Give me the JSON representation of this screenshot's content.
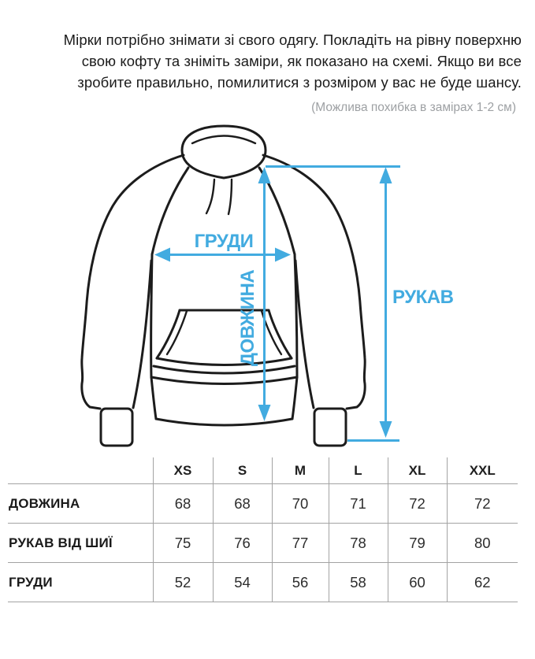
{
  "intro": {
    "lines": [
      "Мірки потрібно знімати зі свого одягу. Покладіть на рівну поверхню",
      "свою кофту та зніміть заміри, як показано на схемі. Якщо ви все",
      "зробите правильно, помилитися з розміром у вас не буде шансу."
    ],
    "note": "(Можлива похибка в замірах 1-2 см)"
  },
  "diagram": {
    "labels": {
      "chest": "ГРУДИ",
      "length": "ДОВЖИНА",
      "sleeve": "РУКАВ"
    },
    "accent_color": "#42ABE0",
    "outline_color": "#1c1c1c"
  },
  "size_table": {
    "columns": [
      "XS",
      "S",
      "M",
      "L",
      "XL",
      "XXL"
    ],
    "rows": [
      {
        "label": "ДОВЖИНА",
        "values": [
          "68",
          "68",
          "70",
          "71",
          "72",
          "72"
        ]
      },
      {
        "label": "РУКАВ ВІД ШИЇ",
        "values": [
          "75",
          "76",
          "77",
          "78",
          "79",
          "80"
        ]
      },
      {
        "label": "ГРУДИ",
        "values": [
          "52",
          "54",
          "56",
          "58",
          "60",
          "62"
        ]
      }
    ],
    "border_color": "#a3a3a3",
    "note_color": "#9da0a3"
  }
}
